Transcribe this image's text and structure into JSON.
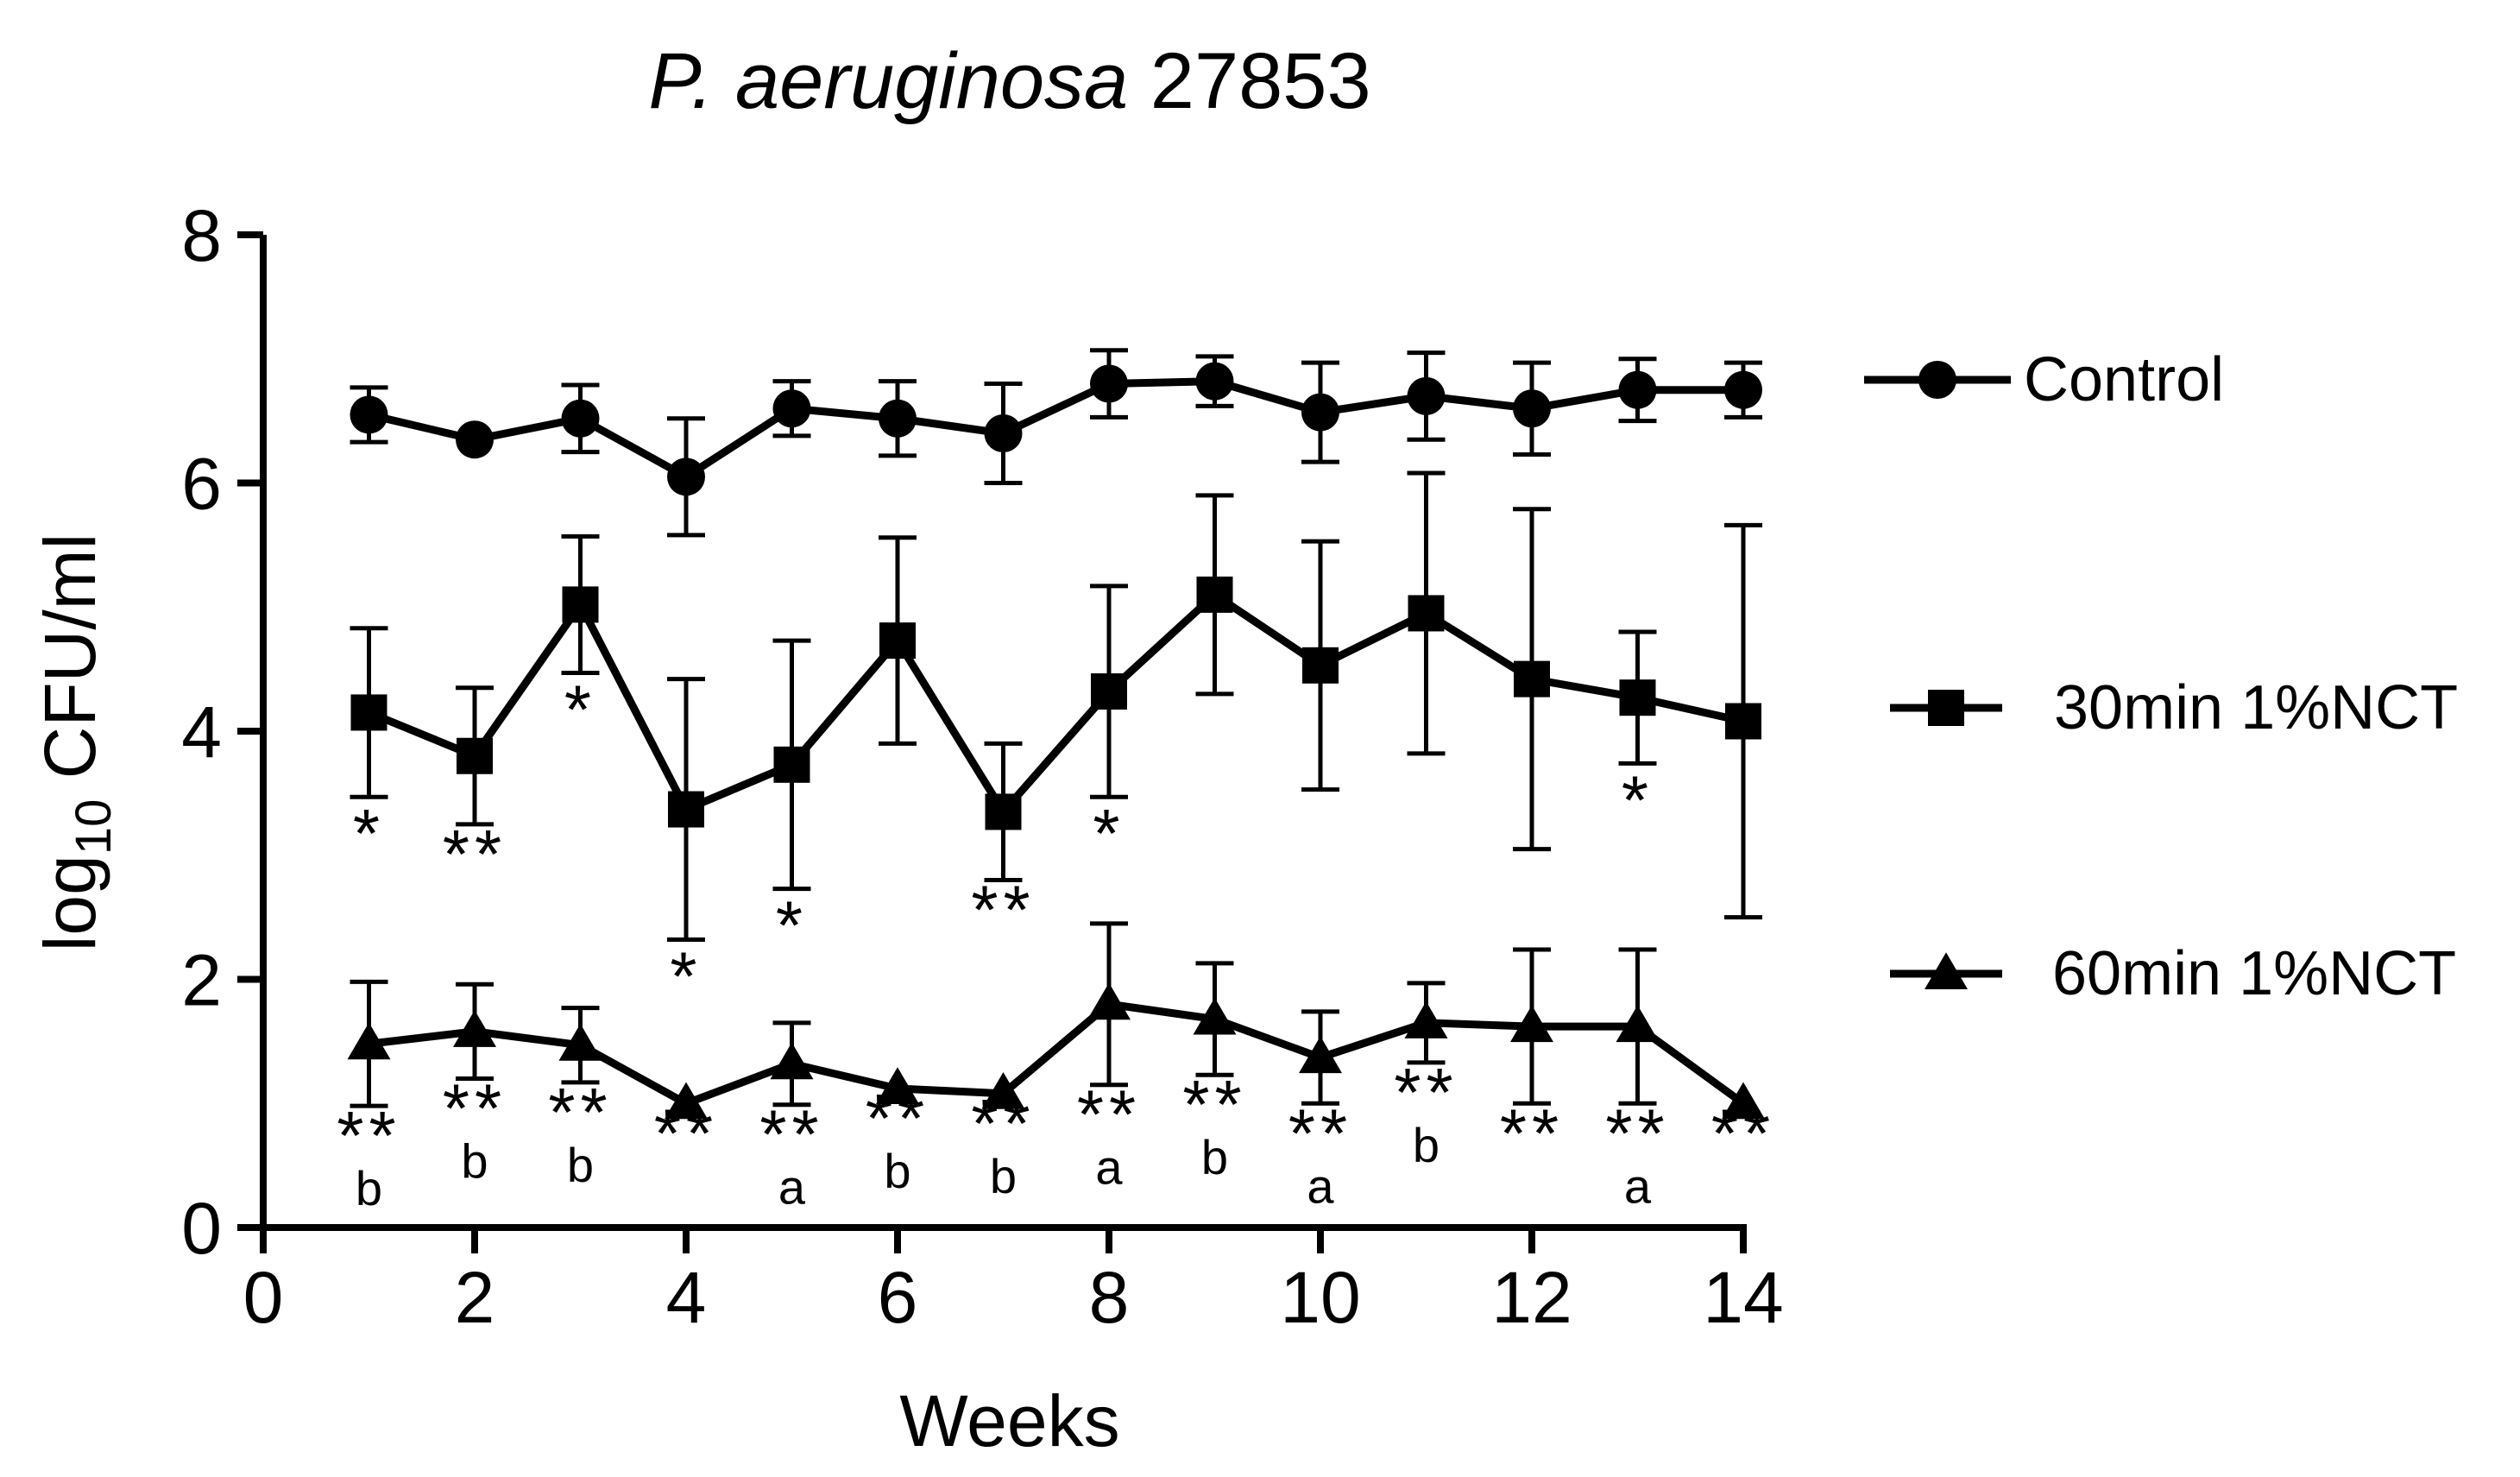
{
  "chart_data": {
    "type": "line",
    "title": {
      "species": "P. aeruginosa",
      "strain": "27853"
    },
    "xlabel": "Weeks",
    "ylabel": {
      "main": "log",
      "subscript": "10",
      "unit": " CFU/ml"
    },
    "xlim": [
      0,
      14
    ],
    "ylim": [
      0,
      8
    ],
    "x_ticks": [
      "0",
      "2",
      "4",
      "6",
      "8",
      "10",
      "12",
      "14"
    ],
    "y_ticks": [
      "0",
      "2",
      "4",
      "6",
      "8"
    ],
    "grid": false,
    "legend_position": "right",
    "x": [
      1,
      2,
      3,
      4,
      5,
      6,
      7,
      8,
      9,
      10,
      11,
      12,
      13,
      14
    ],
    "series": [
      {
        "name": "Control",
        "marker": "circle",
        "values": [
          6.55,
          6.35,
          6.52,
          6.05,
          6.6,
          6.52,
          6.4,
          6.8,
          6.82,
          6.57,
          6.7,
          6.6,
          6.75,
          6.75
        ],
        "error": [
          0.22,
          0.0,
          0.27,
          0.47,
          0.22,
          0.3,
          0.4,
          0.27,
          0.2,
          0.4,
          0.35,
          0.37,
          0.25,
          0.22
        ],
        "annotations": [
          "",
          "",
          "",
          "",
          "",
          "",
          "",
          "",
          "",
          "",
          "",
          "",
          "",
          ""
        ],
        "annotation_position": "below"
      },
      {
        "name": "30min 1%NCT",
        "marker": "square",
        "values": [
          4.15,
          3.8,
          5.02,
          3.37,
          3.73,
          4.73,
          3.35,
          4.32,
          5.1,
          4.53,
          4.95,
          4.42,
          4.27,
          4.08
        ],
        "error": [
          0.68,
          0.55,
          0.55,
          1.05,
          1.0,
          0.83,
          0.55,
          0.85,
          0.8,
          1.0,
          1.13,
          1.37,
          0.53,
          1.58
        ],
        "annotations": [
          "*",
          "**",
          "*",
          "*",
          "*",
          "",
          "**",
          "*",
          "",
          "",
          "",
          "",
          "*",
          ""
        ],
        "annotation_position": "below"
      },
      {
        "name": "60min 1%NCT",
        "marker": "triangle",
        "values": [
          1.48,
          1.58,
          1.47,
          1.0,
          1.32,
          1.12,
          1.08,
          1.8,
          1.68,
          1.37,
          1.65,
          1.62,
          1.62,
          1.0
        ],
        "error": [
          0.5,
          0.38,
          0.3,
          0.0,
          0.33,
          0.0,
          0.0,
          0.65,
          0.45,
          0.37,
          0.32,
          0.62,
          0.62,
          0.0
        ],
        "annotations": [
          "**",
          "**",
          "**",
          "**",
          "**",
          "**",
          "**",
          "**",
          "**",
          "**",
          "**",
          "**",
          "**",
          "**"
        ],
        "letters": [
          "b",
          "b",
          "b",
          "",
          "a",
          "b",
          "b",
          "a",
          "b",
          "a",
          "b",
          "",
          "a",
          ""
        ],
        "annotation_position": "below"
      }
    ]
  }
}
